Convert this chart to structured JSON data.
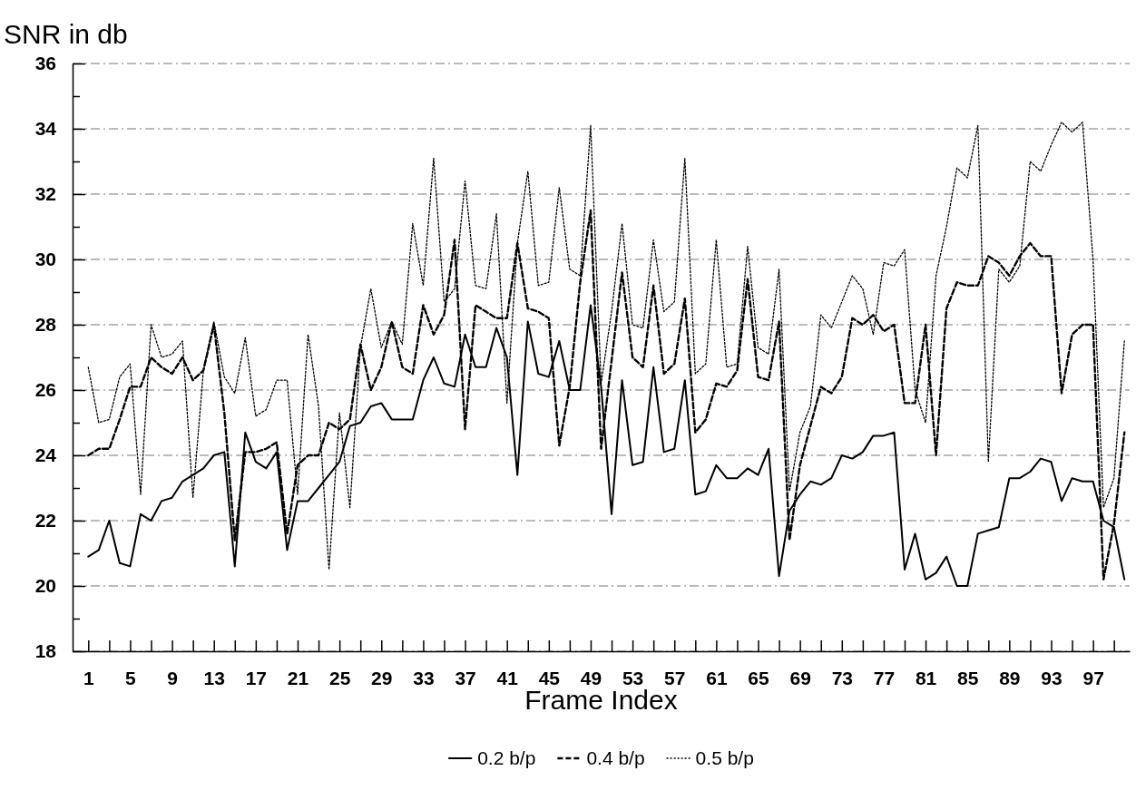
{
  "chart_data": {
    "type": "line",
    "title": "SNR in db",
    "xlabel": "Frame Index",
    "x": [
      1,
      2,
      3,
      4,
      5,
      6,
      7,
      8,
      9,
      10,
      11,
      12,
      13,
      14,
      15,
      16,
      17,
      18,
      19,
      20,
      21,
      22,
      23,
      24,
      25,
      26,
      27,
      28,
      29,
      30,
      31,
      32,
      33,
      34,
      35,
      36,
      37,
      38,
      39,
      40,
      41,
      42,
      43,
      44,
      45,
      46,
      47,
      48,
      49,
      50,
      51,
      52,
      53,
      54,
      55,
      56,
      57,
      58,
      59,
      60,
      61,
      62,
      63,
      64,
      65,
      66,
      67,
      68,
      69,
      70,
      71,
      72,
      73,
      74,
      75,
      76,
      77,
      78,
      79,
      80,
      81,
      82,
      83,
      84,
      85,
      86,
      87,
      88,
      89,
      90,
      91,
      92,
      93,
      94,
      95,
      96,
      97,
      98,
      99,
      100
    ],
    "series": [
      {
        "name": "0.2 b/p",
        "color": "#000000",
        "line_style": "solid",
        "values": [
          20.9,
          21.1,
          22.0,
          20.7,
          20.6,
          22.2,
          22.0,
          22.6,
          22.7,
          23.2,
          23.4,
          23.6,
          24.0,
          24.1,
          20.6,
          24.7,
          23.8,
          23.6,
          24.1,
          21.1,
          22.6,
          22.6,
          23.0,
          23.4,
          23.8,
          24.9,
          25.0,
          25.5,
          25.6,
          25.1,
          25.1,
          25.1,
          26.3,
          27.0,
          26.2,
          26.1,
          27.7,
          26.7,
          26.7,
          27.9,
          27.0,
          23.4,
          28.1,
          26.5,
          26.4,
          27.5,
          26.0,
          26.0,
          28.6,
          26.1,
          22.2,
          26.3,
          23.7,
          23.8,
          26.7,
          24.1,
          24.2,
          26.3,
          22.8,
          22.9,
          23.7,
          23.3,
          23.3,
          23.6,
          23.4,
          24.2,
          20.3,
          22.3,
          22.8,
          23.2,
          23.1,
          23.3,
          24.0,
          23.9,
          24.1,
          24.6,
          24.6,
          24.7,
          20.5,
          21.6,
          20.2,
          20.4,
          20.9,
          20.0,
          20.0,
          21.6,
          21.7,
          21.8,
          23.3,
          23.3,
          23.5,
          23.9,
          23.8,
          22.6,
          23.3,
          23.2,
          23.2,
          22.0,
          21.8,
          20.2
        ]
      },
      {
        "name": "0.4 b/p",
        "color": "#000000",
        "line_style": "dashed",
        "values": [
          24.0,
          24.2,
          24.2,
          25.1,
          26.1,
          26.1,
          27.0,
          26.7,
          26.5,
          27.0,
          26.3,
          26.6,
          28.0,
          25.3,
          21.4,
          24.1,
          24.1,
          24.2,
          24.4,
          21.6,
          23.7,
          24.0,
          24.0,
          25.0,
          24.8,
          25.1,
          27.4,
          26.0,
          26.7,
          28.1,
          26.7,
          26.5,
          28.6,
          27.7,
          28.3,
          30.6,
          24.8,
          28.6,
          28.4,
          28.2,
          28.2,
          30.5,
          28.5,
          28.4,
          28.2,
          24.3,
          26.1,
          29.3,
          31.5,
          24.2,
          26.9,
          29.6,
          27.0,
          26.7,
          29.2,
          26.5,
          26.8,
          28.8,
          24.7,
          25.1,
          26.2,
          26.1,
          26.6,
          29.4,
          26.4,
          26.3,
          28.1,
          21.4,
          23.7,
          24.9,
          26.1,
          25.9,
          26.4,
          28.2,
          28.0,
          28.3,
          27.8,
          28.0,
          25.6,
          25.6,
          28.0,
          24.0,
          28.5,
          29.3,
          29.2,
          29.2,
          30.1,
          29.9,
          29.5,
          30.1,
          30.5,
          30.1,
          30.1,
          25.9,
          27.7,
          28.0,
          28.0,
          20.2,
          21.9,
          24.7
        ]
      },
      {
        "name": "0.5 b/p",
        "color": "#000000",
        "line_style": "dotted",
        "values": [
          26.7,
          25.0,
          25.1,
          26.4,
          26.8,
          22.8,
          28.0,
          27.0,
          27.1,
          27.5,
          22.7,
          26.6,
          28.1,
          26.4,
          25.9,
          27.6,
          25.2,
          25.4,
          26.3,
          26.3,
          22.8,
          27.7,
          25.5,
          20.5,
          25.3,
          22.4,
          27.3,
          29.1,
          27.3,
          28.1,
          27.4,
          31.1,
          29.2,
          33.1,
          28.7,
          29.1,
          32.4,
          29.2,
          29.1,
          31.4,
          25.6,
          30.5,
          32.7,
          29.2,
          29.3,
          32.2,
          29.7,
          29.5,
          34.1,
          26.2,
          28.4,
          31.1,
          28.0,
          27.9,
          30.6,
          28.4,
          28.7,
          33.1,
          26.5,
          26.8,
          30.6,
          26.7,
          26.8,
          30.4,
          27.3,
          27.1,
          29.7,
          22.9,
          24.7,
          25.5,
          28.3,
          27.9,
          28.7,
          29.5,
          29.1,
          27.7,
          29.9,
          29.8,
          30.3,
          26.0,
          25.0,
          29.5,
          31.0,
          32.8,
          32.5,
          34.1,
          23.8,
          29.7,
          29.3,
          29.8,
          33.0,
          32.7,
          33.5,
          34.2,
          33.9,
          34.2,
          30.0,
          22.4,
          23.3,
          27.5
        ]
      }
    ],
    "xlim": [
      -0.5,
      100.5
    ],
    "xticks": [
      1,
      {
        "value": 3,
        "label": null
      },
      5,
      {
        "value": 7,
        "label": null
      },
      9,
      {
        "value": 11,
        "label": null
      },
      13,
      {
        "value": 15,
        "label": null
      },
      17,
      {
        "value": 19,
        "label": null
      },
      21,
      {
        "value": 23,
        "label": null
      },
      25,
      {
        "value": 27,
        "label": null
      },
      29,
      {
        "value": 31,
        "label": null
      },
      33,
      {
        "value": 35,
        "label": null
      },
      37,
      {
        "value": 39,
        "label": null
      },
      41,
      {
        "value": 43,
        "label": null
      },
      45,
      {
        "value": 47,
        "label": null
      },
      49,
      {
        "value": 51,
        "label": null
      },
      53,
      {
        "value": 55,
        "label": null
      },
      57,
      {
        "value": 59,
        "label": null
      },
      61,
      {
        "value": 63,
        "label": null
      },
      65,
      {
        "value": 67,
        "label": null
      },
      69,
      {
        "value": 71,
        "label": null
      },
      73,
      {
        "value": 75,
        "label": null
      },
      77,
      {
        "value": 79,
        "label": null
      },
      81,
      {
        "value": 83,
        "label": null
      },
      85,
      {
        "value": 87,
        "label": null
      },
      89,
      {
        "value": 91,
        "label": null
      },
      93,
      {
        "value": 95,
        "label": null
      },
      97,
      {
        "value": 99,
        "label": null
      }
    ],
    "ylim": [
      18,
      36
    ],
    "yticks": [
      18,
      {
        "value": 19,
        "label": null
      },
      20,
      {
        "value": 21,
        "label": null
      },
      22,
      {
        "value": 23,
        "label": null
      },
      24,
      {
        "value": 25,
        "label": null
      },
      26,
      {
        "value": 27,
        "label": null
      },
      28,
      {
        "value": 29,
        "label": null
      },
      30,
      {
        "value": 31,
        "label": null
      },
      32,
      {
        "value": 33,
        "label": null
      },
      34,
      {
        "value": 35,
        "label": null
      },
      36
    ],
    "grid": "y",
    "legend": "bottom",
    "marker": "none"
  }
}
